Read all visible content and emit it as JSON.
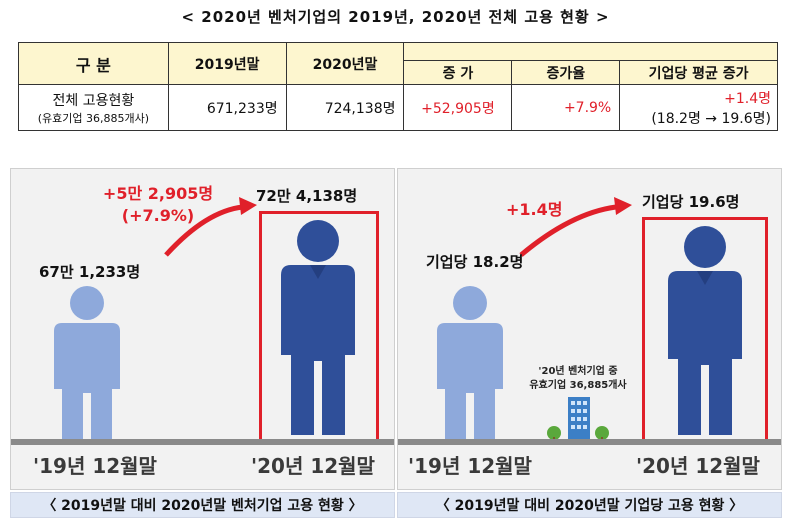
{
  "title": "< 2020년 벤처기업의 2019년, 2020년 전체 고용 현황 >",
  "table": {
    "h_category": "구  분",
    "h_2019": "2019년말",
    "h_2020": "2020년말",
    "h_increase": "증  가",
    "h_rate": "증가율",
    "h_avg": "기업당 평균 증가",
    "row_label": "전체 고용현황",
    "row_sub": "(유효기업 36,885개사)",
    "v_2019": "671,233명",
    "v_2020": "724,138명",
    "v_increase": "+52,905명",
    "v_rate": "+7.9%",
    "v_avg": "+1.4명",
    "v_avg_sub": "(18.2명 → 19.6명)"
  },
  "left_panel": {
    "value_2019": "67만 1,233명",
    "value_2020": "72만 4,138명",
    "increase": "+5만 2,905명",
    "increase_rate": "(+7.9%)",
    "year_2019": "'19년 12월말",
    "year_2020": "'20년 12월말",
    "caption": "〈 2019년말 대비 2020년말 벤처기업 고용 현황 〉"
  },
  "right_panel": {
    "value_2019": "기업당 18.2명",
    "value_2020": "기업당 19.6명",
    "increase": "+1.4명",
    "note_line1": "'20년 벤처기업 중",
    "note_line2": "유효기업 36,885개사",
    "year_2019": "'19년 12월말",
    "year_2020": "'20년 12월말",
    "caption": "〈 2019년말 대비 2020년말 기업당 고용 현황 〉"
  },
  "colors": {
    "accent_red": "#e0202a",
    "person_light": "#8ea9db",
    "person_dark": "#2f4f99",
    "header_bg": "#fdf6cf",
    "caption_bg": "#dfe7f5"
  }
}
